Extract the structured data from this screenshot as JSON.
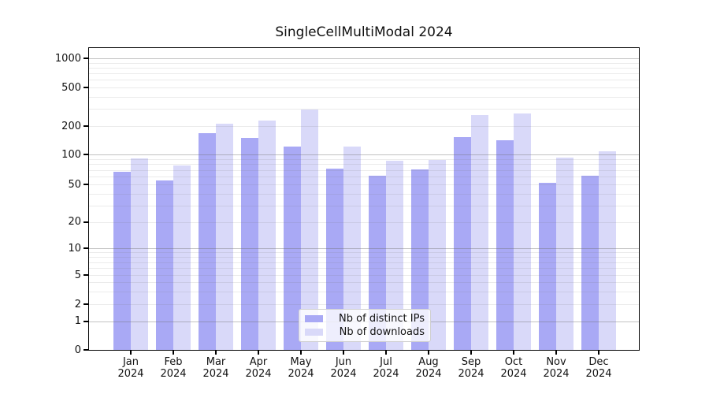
{
  "title": "SingleCellMultiModal 2024",
  "legend": {
    "items": [
      {
        "label": "Nb of distinct IPs",
        "color": "#a9a9f5"
      },
      {
        "label": "Nb of downloads",
        "color": "#d9d9f9"
      }
    ]
  },
  "chart_data": {
    "type": "bar",
    "title": "SingleCellMultiModal 2024",
    "categories": [
      "Jan 2024",
      "Feb 2024",
      "Mar 2024",
      "Apr 2024",
      "May 2024",
      "Jun 2024",
      "Jul 2024",
      "Aug 2024",
      "Sep 2024",
      "Oct 2024",
      "Nov 2024",
      "Dec 2024"
    ],
    "series": [
      {
        "name": "Nb of distinct IPs",
        "color": "#a9a9f5",
        "values": [
          67,
          55,
          167,
          150,
          122,
          72,
          61,
          71,
          152,
          141,
          52,
          61
        ]
      },
      {
        "name": "Nb of downloads",
        "color": "#d9d9f9",
        "values": [
          92,
          78,
          212,
          226,
          296,
          121,
          87,
          88,
          260,
          271,
          93,
          107
        ]
      }
    ],
    "xlabel": "",
    "ylabel": "",
    "yscale": "symlog",
    "yticks": [
      0,
      1,
      2,
      5,
      10,
      20,
      50,
      100,
      200,
      500,
      1000
    ],
    "ylim": [
      0,
      1276
    ],
    "grid": true,
    "legend_position": "lower center"
  }
}
